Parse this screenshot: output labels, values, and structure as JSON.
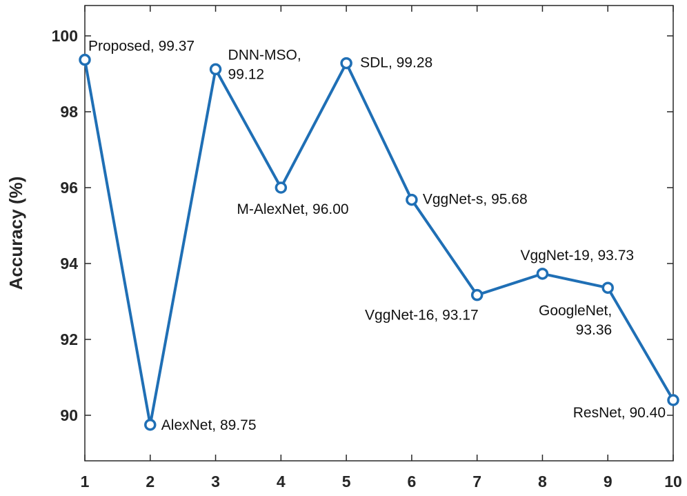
{
  "chart_data": {
    "type": "line",
    "title": "",
    "xlabel": "",
    "ylabel": "Accuracy (%)",
    "x": [
      1,
      2,
      3,
      4,
      5,
      6,
      7,
      8,
      9,
      10
    ],
    "xlim": [
      1,
      10
    ],
    "ylim": [
      88.8,
      100.8
    ],
    "xticks": [
      "1",
      "2",
      "3",
      "4",
      "5",
      "6",
      "7",
      "8",
      "9",
      "10"
    ],
    "yticks": [
      "90",
      "92",
      "94",
      "96",
      "98",
      "100"
    ],
    "grid": false,
    "legend": "none",
    "series": [
      {
        "values": [
          99.37,
          89.75,
          99.12,
          96.0,
          99.28,
          95.68,
          93.17,
          93.73,
          93.36,
          90.4
        ],
        "color": "#1f6fb5",
        "marker": "circle"
      }
    ],
    "annotations": [
      {
        "lines": [
          "Proposed, 99.37"
        ]
      },
      {
        "lines": [
          "AlexNet, 89.75"
        ]
      },
      {
        "lines": [
          "DNN-MSO,",
          "99.12"
        ]
      },
      {
        "lines": [
          "M-AlexNet, 96.00"
        ]
      },
      {
        "lines": [
          "SDL, 99.28"
        ]
      },
      {
        "lines": [
          "VggNet-s, 95.68"
        ]
      },
      {
        "lines": [
          "VggNet-16, 93.17"
        ]
      },
      {
        "lines": [
          "VggNet-19, 93.73"
        ]
      },
      {
        "lines": [
          "GoogleNet,",
          "93.36"
        ]
      },
      {
        "lines": [
          "ResNet, 90.40"
        ]
      }
    ]
  }
}
